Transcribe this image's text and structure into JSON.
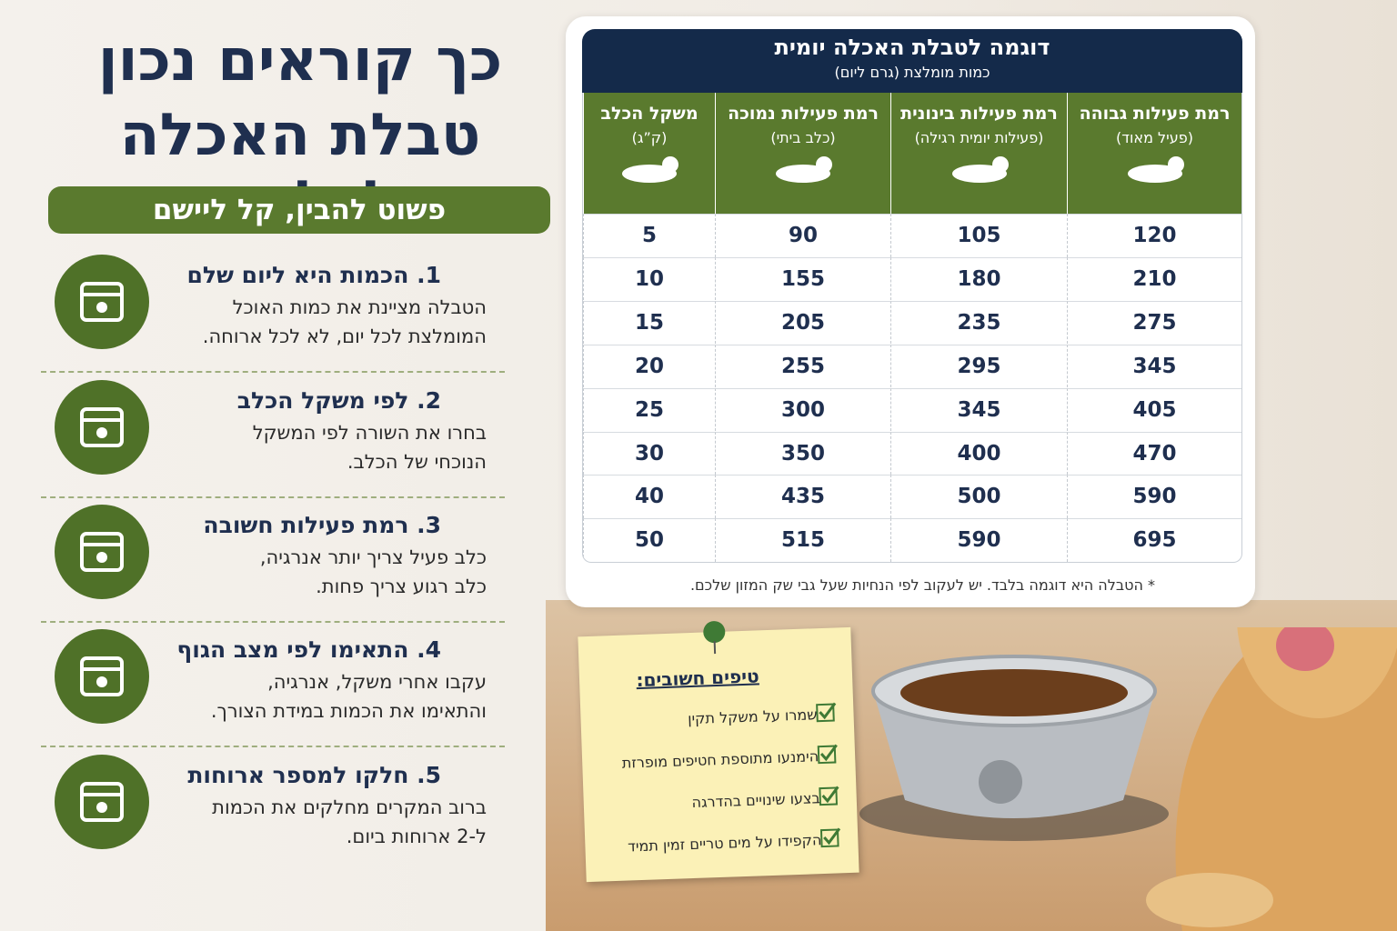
{
  "header": {
    "title_line1": "כך קוראים נכון",
    "title_line2": "טבלת האכלה לכלבים",
    "subtitle": "פשוט להבין, קל ליישם"
  },
  "steps": [
    {
      "title": "1. הכמות היא ליום שלם",
      "lines": [
        "הטבלה מציינת את כמות האוכל",
        "המומלצת לכל יום, לא לכל ארוחה."
      ]
    },
    {
      "title": "2. לפי משקל הכלב",
      "lines": [
        "בחרו את השורה לפי המשקל",
        "הנוכחי של הכלב."
      ]
    },
    {
      "title": "3. רמת פעילות חשובה",
      "lines": [
        "כלב פעיל צריך יותר אנרגיה,",
        "כלב רגוע צריך פחות."
      ]
    },
    {
      "title": "4. התאימו לפי מצב הגוף",
      "lines": [
        "עקבו אחרי משקל, אנרגיה,",
        "והתאימו את הכמות במידת הצורך."
      ]
    },
    {
      "title": "5. חלקו למספר ארוחות",
      "lines": [
        "ברוב המקרים מחלקים את הכמות",
        "ל-2 ארוחות ביום."
      ]
    }
  ],
  "table": {
    "title": "דוגמה לטבלת האכלה יומית",
    "subtitle": "כמות מומלצת (גרם ליום)",
    "columns": [
      {
        "label": "משקל הכלב",
        "sub": "(ק”ג)"
      },
      {
        "label": "רמת פעילות נמוכה",
        "sub": "(כלב ביתי)"
      },
      {
        "label": "רמת פעילות בינונית",
        "sub": "(פעילות יומית רגילה)"
      },
      {
        "label": "רמת פעילות גבוהה",
        "sub": "(פעיל מאוד)"
      }
    ],
    "rows": [
      [
        5,
        90,
        105,
        120
      ],
      [
        10,
        155,
        180,
        210
      ],
      [
        15,
        205,
        235,
        275
      ],
      [
        20,
        255,
        295,
        345
      ],
      [
        25,
        300,
        345,
        405
      ],
      [
        30,
        350,
        400,
        470
      ],
      [
        40,
        435,
        500,
        590
      ],
      [
        50,
        515,
        590,
        695
      ]
    ],
    "note": "* הטבלה היא דוגמה בלבד. יש לעקוב לפי הנחיות שעל גבי שק המזון שלכם."
  },
  "tips": {
    "title": "טיפים חשובים:",
    "items": [
      "שמרו על משקל תקין",
      "הימנעו מתוספת חטיפים מופרזת",
      "בצעו שינויים בהדרגה",
      "הקפידו על מים טריים זמין תמיד"
    ]
  }
}
